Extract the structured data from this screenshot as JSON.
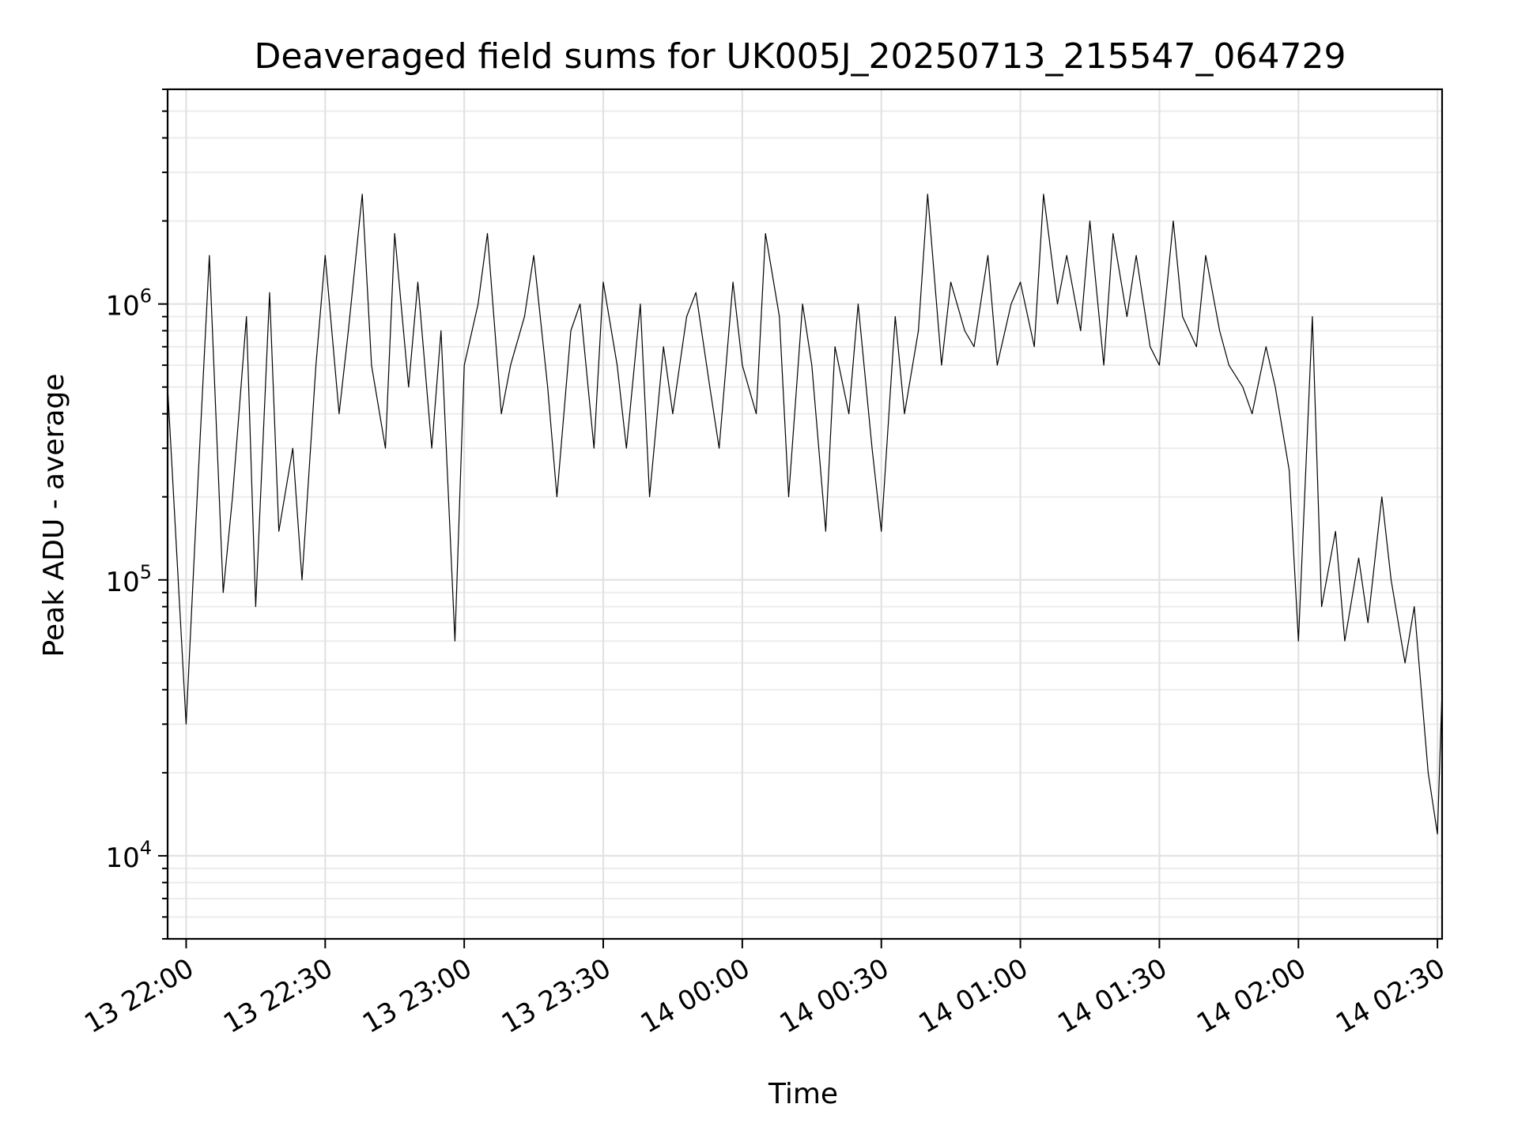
{
  "chart_data": {
    "type": "line",
    "title": "Deaveraged field sums for UK005J_20250713_215547_064729",
    "xlabel": "Time",
    "ylabel": "Peak ADU - average",
    "y_scale": "log",
    "ylim": [
      5000,
      6000000
    ],
    "xlim": [
      "2025-07-13 21:56",
      "2025-07-14 02:31"
    ],
    "grid": true,
    "legend": "none",
    "line_color": "#000000",
    "x_ticks": [
      {
        "value": "2025-07-13 22:00",
        "label": "13 22:00"
      },
      {
        "value": "2025-07-13 22:30",
        "label": "13 22:30"
      },
      {
        "value": "2025-07-13 23:00",
        "label": "13 23:00"
      },
      {
        "value": "2025-07-13 23:30",
        "label": "13 23:30"
      },
      {
        "value": "2025-07-14 00:00",
        "label": "14 00:00"
      },
      {
        "value": "2025-07-14 00:30",
        "label": "14 00:30"
      },
      {
        "value": "2025-07-14 01:00",
        "label": "14 01:00"
      },
      {
        "value": "2025-07-14 01:30",
        "label": "14 01:30"
      },
      {
        "value": "2025-07-14 02:00",
        "label": "14 02:00"
      },
      {
        "value": "2025-07-14 02:30",
        "label": "14 02:30"
      }
    ],
    "y_ticks": [
      {
        "value": 10000,
        "base": "10",
        "exp": "4"
      },
      {
        "value": 100000,
        "base": "10",
        "exp": "5"
      },
      {
        "value": 1000000,
        "base": "10",
        "exp": "6"
      }
    ],
    "series": [
      {
        "x": [
          "2025-07-13 21:56",
          "2025-07-13 22:00",
          "2025-07-13 22:02",
          "2025-07-13 22:05",
          "2025-07-13 22:08",
          "2025-07-13 22:10",
          "2025-07-13 22:13",
          "2025-07-13 22:15",
          "2025-07-13 22:18",
          "2025-07-13 22:20",
          "2025-07-13 22:23",
          "2025-07-13 22:25",
          "2025-07-13 22:28",
          "2025-07-13 22:30",
          "2025-07-13 22:33",
          "2025-07-13 22:35",
          "2025-07-13 22:38",
          "2025-07-13 22:40",
          "2025-07-13 22:43",
          "2025-07-13 22:45",
          "2025-07-13 22:48",
          "2025-07-13 22:50",
          "2025-07-13 22:53",
          "2025-07-13 22:55",
          "2025-07-13 22:58",
          "2025-07-13 23:00",
          "2025-07-13 23:03",
          "2025-07-13 23:05",
          "2025-07-13 23:08",
          "2025-07-13 23:10",
          "2025-07-13 23:13",
          "2025-07-13 23:15",
          "2025-07-13 23:18",
          "2025-07-13 23:20",
          "2025-07-13 23:23",
          "2025-07-13 23:25",
          "2025-07-13 23:28",
          "2025-07-13 23:30",
          "2025-07-13 23:33",
          "2025-07-13 23:35",
          "2025-07-13 23:38",
          "2025-07-13 23:40",
          "2025-07-13 23:43",
          "2025-07-13 23:45",
          "2025-07-13 23:48",
          "2025-07-13 23:50",
          "2025-07-13 23:53",
          "2025-07-13 23:55",
          "2025-07-13 23:58",
          "2025-07-14 00:00",
          "2025-07-14 00:03",
          "2025-07-14 00:05",
          "2025-07-14 00:08",
          "2025-07-14 00:10",
          "2025-07-14 00:13",
          "2025-07-14 00:15",
          "2025-07-14 00:18",
          "2025-07-14 00:20",
          "2025-07-14 00:23",
          "2025-07-14 00:25",
          "2025-07-14 00:28",
          "2025-07-14 00:30",
          "2025-07-14 00:33",
          "2025-07-14 00:35",
          "2025-07-14 00:38",
          "2025-07-14 00:40",
          "2025-07-14 00:43",
          "2025-07-14 00:45",
          "2025-07-14 00:48",
          "2025-07-14 00:50",
          "2025-07-14 00:53",
          "2025-07-14 00:55",
          "2025-07-14 00:58",
          "2025-07-14 01:00",
          "2025-07-14 01:03",
          "2025-07-14 01:05",
          "2025-07-14 01:08",
          "2025-07-14 01:10",
          "2025-07-14 01:13",
          "2025-07-14 01:15",
          "2025-07-14 01:18",
          "2025-07-14 01:20",
          "2025-07-14 01:23",
          "2025-07-14 01:25",
          "2025-07-14 01:28",
          "2025-07-14 01:30",
          "2025-07-14 01:33",
          "2025-07-14 01:35",
          "2025-07-14 01:38",
          "2025-07-14 01:40",
          "2025-07-14 01:43",
          "2025-07-14 01:45",
          "2025-07-14 01:48",
          "2025-07-14 01:50",
          "2025-07-14 01:53",
          "2025-07-14 01:55",
          "2025-07-14 01:58",
          "2025-07-14 02:00",
          "2025-07-14 02:03",
          "2025-07-14 02:05",
          "2025-07-14 02:08",
          "2025-07-14 02:10",
          "2025-07-14 02:13",
          "2025-07-14 02:15",
          "2025-07-14 02:18",
          "2025-07-14 02:20",
          "2025-07-14 02:23",
          "2025-07-14 02:25",
          "2025-07-14 02:28",
          "2025-07-14 02:30",
          "2025-07-14 02:31"
        ],
        "y": [
          500000,
          30000,
          150000,
          1500000,
          90000,
          200000,
          900000,
          80000,
          1100000,
          150000,
          300000,
          100000,
          600000,
          1500000,
          400000,
          800000,
          2500000,
          600000,
          300000,
          1800000,
          500000,
          1200000,
          300000,
          800000,
          60000,
          600000,
          1000000,
          1800000,
          400000,
          600000,
          900000,
          1500000,
          500000,
          200000,
          800000,
          1000000,
          300000,
          1200000,
          600000,
          300000,
          1000000,
          200000,
          700000,
          400000,
          900000,
          1100000,
          500000,
          300000,
          1200000,
          600000,
          400000,
          1800000,
          900000,
          200000,
          1000000,
          600000,
          150000,
          700000,
          400000,
          1000000,
          300000,
          150000,
          900000,
          400000,
          800000,
          2500000,
          600000,
          1200000,
          800000,
          700000,
          1500000,
          600000,
          1000000,
          1200000,
          700000,
          2500000,
          1000000,
          1500000,
          800000,
          2000000,
          600000,
          1800000,
          900000,
          1500000,
          700000,
          600000,
          2000000,
          900000,
          700000,
          1500000,
          800000,
          600000,
          500000,
          400000,
          700000,
          500000,
          250000,
          60000,
          900000,
          80000,
          150000,
          60000,
          120000,
          70000,
          200000,
          100000,
          50000,
          80000,
          20000,
          12000,
          40000
        ]
      }
    ]
  }
}
